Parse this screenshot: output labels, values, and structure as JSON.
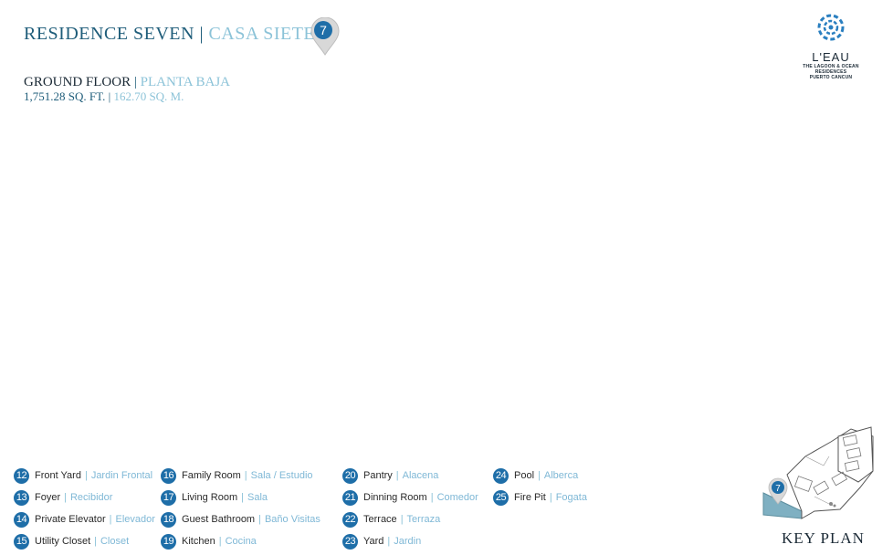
{
  "header": {
    "title_en": "RESIDENCE SEVEN",
    "separator": "|",
    "title_es": "CASA SIETE",
    "pin_number": "7"
  },
  "floor": {
    "name_en": "GROUND FLOOR",
    "name_es": "PLANTA BAJA",
    "area_sqft": "1,751.28 SQ. FT.",
    "area_sqm": "162.70 SQ. M."
  },
  "logo": {
    "name": "L'EAU",
    "tagline": "THE LAGOON & OCEAN RESIDENCES",
    "location": "PUERTO CANCUN"
  },
  "legend": {
    "columns": [
      [
        {
          "num": "12",
          "en": "Front Yard",
          "es": "Jardin Frontal"
        },
        {
          "num": "13",
          "en": "Foyer",
          "es": "Recibidor"
        },
        {
          "num": "14",
          "en": "Private Elevator",
          "es": "Elevador"
        },
        {
          "num": "15",
          "en": "Utility Closet",
          "es": "Closet"
        }
      ],
      [
        {
          "num": "16",
          "en": "Family Room",
          "es": "Sala / Estudio"
        },
        {
          "num": "17",
          "en": "Living Room",
          "es": "Sala"
        },
        {
          "num": "18",
          "en": "Guest Bathroom",
          "es": "Baño Visitas"
        },
        {
          "num": "19",
          "en": "Kitchen",
          "es": "Cocina"
        }
      ],
      [
        {
          "num": "20",
          "en": "Pantry",
          "es": "Alacena"
        },
        {
          "num": "21",
          "en": "Dinning Room",
          "es": "Comedor"
        },
        {
          "num": "22",
          "en": "Terrace",
          "es": "Terraza"
        },
        {
          "num": "23",
          "en": "Yard",
          "es": "Jardin"
        }
      ],
      [
        {
          "num": "24",
          "en": "Pool",
          "es": "Alberca"
        },
        {
          "num": "25",
          "en": "Fire Pit",
          "es": "Fogata"
        }
      ]
    ]
  },
  "keyplan": {
    "label": "KEY PLAN",
    "pin_number": "7"
  },
  "colors": {
    "dark_title": "#1f5d7a",
    "light_title": "#8cc3d8",
    "badge": "#1e6ea8"
  }
}
